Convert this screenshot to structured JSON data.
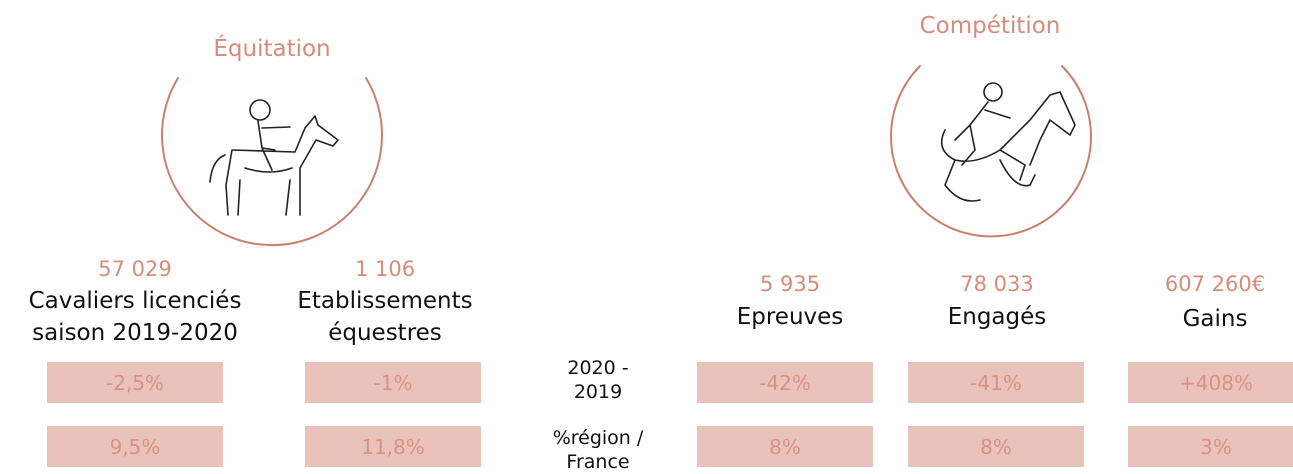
{
  "sections": [
    {
      "title": "Équitation",
      "metrics": [
        {
          "value": "57 029",
          "label": [
            "Cavaliers licenciés",
            "saison 2019-2020"
          ],
          "evolution": "-2,5%",
          "share": "9,5%"
        },
        {
          "value": "1 106",
          "label": [
            "Etablissements",
            "équestres"
          ],
          "evolution": "-1%",
          "share": "11,8%"
        }
      ]
    },
    {
      "title": "Compétition",
      "metrics": [
        {
          "value": "5 935",
          "label": [
            "Epreuves"
          ],
          "evolution": "-42%",
          "share": "8%"
        },
        {
          "value": "78 033",
          "label": [
            "Engagés"
          ],
          "evolution": "-41%",
          "share": "8%"
        },
        {
          "value": "607 260€",
          "label": [
            "Gains"
          ],
          "evolution": "+408%",
          "share": "3%"
        }
      ]
    }
  ],
  "row_labels": [
    [
      "2020 -",
      "2019"
    ],
    [
      "%région /",
      "France"
    ]
  ]
}
